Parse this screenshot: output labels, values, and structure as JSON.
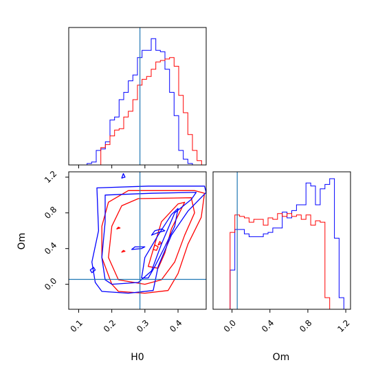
{
  "chart_data": {
    "type": "corner",
    "parameters": [
      "H0",
      "Om"
    ],
    "truth": {
      "H0": 0.285,
      "Om": 0.055
    },
    "colors": {
      "series_a": "#ff0000",
      "series_b": "#0000ff",
      "truth": "#1f77b4"
    },
    "panels": [
      {
        "id": "hist-H0",
        "type": "step-histogram",
        "xlim": [
          0.07,
          0.485
        ],
        "x_edges": [
          0.07,
          0.0838,
          0.0977,
          0.1115,
          0.1253,
          0.1392,
          0.153,
          0.1668,
          0.1807,
          0.1945,
          0.2083,
          0.2222,
          0.236,
          0.2498,
          0.2637,
          0.2775,
          0.2913,
          0.3052,
          0.319,
          0.3328,
          0.3467,
          0.3605,
          0.3743,
          0.3882,
          0.402,
          0.4158,
          0.4297,
          0.4435,
          0.4573,
          0.4712,
          0.485
        ],
        "series": [
          {
            "color": "#0000ff",
            "heights": [
              0,
              0,
              0,
              0,
              0.01,
              0.02,
              0.1,
              0.11,
              0.16,
              0.31,
              0.33,
              0.45,
              0.5,
              0.58,
              0.62,
              0.74,
              0.79,
              0.79,
              0.87,
              0.79,
              0.78,
              0.66,
              0.5,
              0.34,
              0.1,
              0.04,
              0.01,
              0,
              0,
              0
            ]
          },
          {
            "color": "#ff0000",
            "heights": [
              0,
              0,
              0,
              0,
              0,
              0,
              0,
              0.12,
              0.14,
              0.2,
              0.24,
              0.25,
              0.33,
              0.37,
              0.45,
              0.55,
              0.59,
              0.61,
              0.66,
              0.71,
              0.72,
              0.73,
              0.74,
              0.68,
              0.48,
              0.36,
              0.21,
              0.1,
              0.03,
              0
            ]
          }
        ]
      },
      {
        "id": "hist-Om",
        "type": "step-histogram",
        "xlim": [
          -0.2,
          1.25
        ],
        "x_edges": [
          -0.02,
          0.03,
          0.08,
          0.13,
          0.18,
          0.23,
          0.28,
          0.33,
          0.38,
          0.43,
          0.48,
          0.53,
          0.58,
          0.63,
          0.68,
          0.73,
          0.78,
          0.83,
          0.88,
          0.93,
          0.98,
          1.03,
          1.08,
          1.13,
          1.18,
          1.23
        ],
        "series": [
          {
            "color": "#0000ff",
            "heights": [
              0.27,
              0.55,
              0.55,
              0.52,
              0.5,
              0.5,
              0.5,
              0.52,
              0.53,
              0.56,
              0.56,
              0.67,
              0.63,
              0.68,
              0.72,
              0.72,
              0.87,
              0.85,
              0.72,
              0.83,
              0.86,
              0.9,
              0.49,
              0.08,
              0
            ]
          },
          {
            "color": "#ff0000",
            "heights": [
              0.53,
              0.65,
              0.64,
              0.63,
              0.6,
              0.62,
              0.62,
              0.58,
              0.63,
              0.62,
              0.66,
              0.64,
              0.66,
              0.64,
              0.65,
              0.62,
              0.65,
              0.58,
              0.61,
              0.6,
              0.08,
              0,
              0,
              0,
              0
            ]
          }
        ]
      },
      {
        "id": "contour-H0-Om",
        "type": "contour",
        "xlim": [
          0.07,
          0.485
        ],
        "ylim": [
          -0.28,
          1.26
        ],
        "series": [
          {
            "color": "#0000ff",
            "levels": [
              [
                [
                  0.15,
                  0.02
                ],
                [
                  0.14,
                  0.25
                ],
                [
                  0.16,
                  0.6
                ],
                [
                  0.155,
                  1.08
                ],
                [
                  0.31,
                  1.1
                ],
                [
                  0.48,
                  1.1
                ],
                [
                  0.485,
                  1.03
                ],
                [
                  0.43,
                  0.82
                ],
                [
                  0.38,
                  0.55
                ],
                [
                  0.34,
                  0.2
                ],
                [
                  0.325,
                  -0.07
                ],
                [
                  0.25,
                  -0.1
                ],
                [
                  0.17,
                  -0.08
                ],
                [
                  0.15,
                  0.02
                ]
              ],
              [
                [
                  0.18,
                  0.05
                ],
                [
                  0.17,
                  0.3
                ],
                [
                  0.18,
                  0.7
                ],
                [
                  0.18,
                  1.0
                ],
                [
                  0.32,
                  1.02
                ],
                [
                  0.455,
                  1.03
                ],
                [
                  0.44,
                  0.95
                ],
                [
                  0.39,
                  0.8
                ],
                [
                  0.35,
                  0.45
                ],
                [
                  0.32,
                  0.15
                ],
                [
                  0.28,
                  0.02
                ],
                [
                  0.2,
                  0.0
                ],
                [
                  0.18,
                  0.05
                ]
              ],
              [
                [
                  0.29,
                  0.07
                ],
                [
                  0.3,
                  0.3
                ],
                [
                  0.34,
                  0.55
                ],
                [
                  0.38,
                  0.78
                ],
                [
                  0.4,
                  0.85
                ],
                [
                  0.39,
                  0.65
                ],
                [
                  0.36,
                  0.42
                ],
                [
                  0.33,
                  0.2
                ],
                [
                  0.31,
                  0.07
                ],
                [
                  0.29,
                  0.07
                ]
              ],
              [
                [
                  0.32,
                  0.55
                ],
                [
                  0.34,
                  0.58
                ],
                [
                  0.36,
                  0.6
                ],
                [
                  0.35,
                  0.62
                ],
                [
                  0.33,
                  0.6
                ],
                [
                  0.32,
                  0.55
                ]
              ],
              [
                [
                  0.26,
                  0.39
                ],
                [
                  0.29,
                  0.4
                ],
                [
                  0.3,
                  0.42
                ],
                [
                  0.27,
                  0.42
                ],
                [
                  0.26,
                  0.39
                ]
              ],
              [
                [
                  0.23,
                  1.19
                ],
                [
                  0.235,
                  1.24
                ],
                [
                  0.24,
                  1.2
                ],
                [
                  0.23,
                  1.19
                ]
              ],
              [
                [
                  0.14,
                  0.13
                ],
                [
                  0.135,
                  0.16
                ],
                [
                  0.145,
                  0.19
                ],
                [
                  0.15,
                  0.16
                ],
                [
                  0.14,
                  0.13
                ]
              ]
            ]
          },
          {
            "color": "#ff0000",
            "levels": [
              [
                [
                  0.2,
                  0.0
                ],
                [
                  0.17,
                  0.3
                ],
                [
                  0.17,
                  0.65
                ],
                [
                  0.19,
                  0.92
                ],
                [
                  0.25,
                  1.05
                ],
                [
                  0.45,
                  1.05
                ],
                [
                  0.48,
                  1.02
                ],
                [
                  0.47,
                  0.75
                ],
                [
                  0.43,
                  0.45
                ],
                [
                  0.4,
                  0.12
                ],
                [
                  0.37,
                  -0.07
                ],
                [
                  0.3,
                  -0.1
                ],
                [
                  0.22,
                  -0.08
                ],
                [
                  0.2,
                  0.0
                ]
              ],
              [
                [
                  0.22,
                  0.05
                ],
                [
                  0.19,
                  0.3
                ],
                [
                  0.2,
                  0.65
                ],
                [
                  0.23,
                  0.88
                ],
                [
                  0.28,
                  0.96
                ],
                [
                  0.44,
                  0.97
                ],
                [
                  0.45,
                  0.8
                ],
                [
                  0.42,
                  0.55
                ],
                [
                  0.39,
                  0.25
                ],
                [
                  0.35,
                  0.05
                ],
                [
                  0.3,
                  0.0
                ],
                [
                  0.22,
                  0.05
                ]
              ],
              [
                [
                  0.31,
                  0.2
                ],
                [
                  0.33,
                  0.45
                ],
                [
                  0.35,
                  0.7
                ],
                [
                  0.4,
                  0.9
                ],
                [
                  0.42,
                  0.92
                ],
                [
                  0.38,
                  0.62
                ],
                [
                  0.36,
                  0.35
                ],
                [
                  0.34,
                  0.18
                ],
                [
                  0.31,
                  0.2
                ]
              ],
              [
                [
                  0.325,
                  0.39
                ],
                [
                  0.33,
                  0.44
                ],
                [
                  0.34,
                  0.42
                ],
                [
                  0.335,
                  0.38
                ],
                [
                  0.325,
                  0.39
                ]
              ],
              [
                [
                  0.34,
                  0.44
                ],
                [
                  0.345,
                  0.48
                ],
                [
                  0.35,
                  0.46
                ],
                [
                  0.34,
                  0.44
                ]
              ],
              [
                [
                  0.23,
                  0.36
                ],
                [
                  0.235,
                  0.38
                ],
                [
                  0.24,
                  0.37
                ],
                [
                  0.23,
                  0.36
                ]
              ],
              [
                [
                  0.215,
                  0.62
                ],
                [
                  0.22,
                  0.64
                ],
                [
                  0.225,
                  0.63
                ],
                [
                  0.215,
                  0.62
                ]
              ]
            ]
          }
        ]
      }
    ],
    "axes": {
      "hist_H0": {
        "xlabel": "",
        "ticks": [
          0.1,
          0.2,
          0.3,
          0.4
        ],
        "tick_labels_shown": false
      },
      "joint": {
        "xlabel": "H0",
        "ylabel": "Om",
        "xticks": [
          0.1,
          0.2,
          0.3,
          0.4
        ],
        "xtick_labels": [
          "0.1",
          "0.2",
          "0.3",
          "0.4"
        ],
        "yticks": [
          0.0,
          0.4,
          0.8,
          1.2
        ],
        "ytick_labels": [
          "0.0",
          "0.4",
          "0.8",
          "1.2"
        ]
      },
      "hist_Om": {
        "xlabel": "Om",
        "xticks": [
          0.0,
          0.4,
          0.8,
          1.2
        ],
        "xtick_labels": [
          "0.0",
          "0.4",
          "0.8",
          "1.2"
        ]
      }
    },
    "grid": false,
    "legend": "none"
  }
}
